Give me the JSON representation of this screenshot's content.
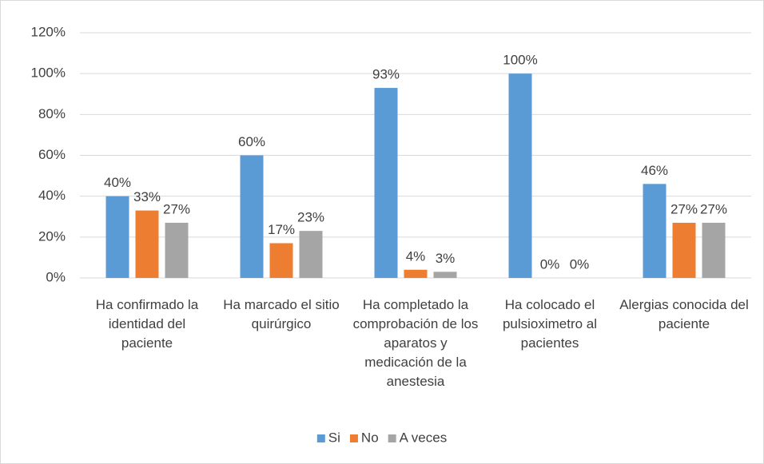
{
  "chart_data": {
    "type": "bar",
    "categories": [
      "Ha confirmado la identidad del paciente",
      "Ha marcado el sitio quirúrgico",
      "Ha completado la comprobación de los aparatos y medicación de la anestesia",
      "Ha colocado el pulsioximetro al pacientes",
      "Alergias conocida del paciente"
    ],
    "series": [
      {
        "name": "Si",
        "color": "#5b9bd5",
        "values": [
          40,
          60,
          93,
          100,
          46
        ],
        "value_labels": [
          "40%",
          "60%",
          "93%",
          "100%",
          "46%"
        ]
      },
      {
        "name": "No",
        "color": "#ed7d31",
        "values": [
          33,
          17,
          4,
          0,
          27
        ],
        "value_labels": [
          "33%",
          "17%",
          "4%",
          "0%",
          "27%"
        ]
      },
      {
        "name": "A veces",
        "color": "#a5a5a5",
        "values": [
          27,
          23,
          3,
          0,
          27
        ],
        "value_labels": [
          "27%",
          "23%",
          "3%",
          "0%",
          "27%"
        ]
      }
    ],
    "ylim": [
      0,
      120
    ],
    "yticks": [
      {
        "value": 0,
        "label": "0%"
      },
      {
        "value": 20,
        "label": "20%"
      },
      {
        "value": 40,
        "label": "40%"
      },
      {
        "value": 60,
        "label": "60%"
      },
      {
        "value": 80,
        "label": "80%"
      },
      {
        "value": 100,
        "label": "100%"
      },
      {
        "value": 120,
        "label": "120%"
      }
    ],
    "grid": true,
    "legend": "bottom"
  }
}
